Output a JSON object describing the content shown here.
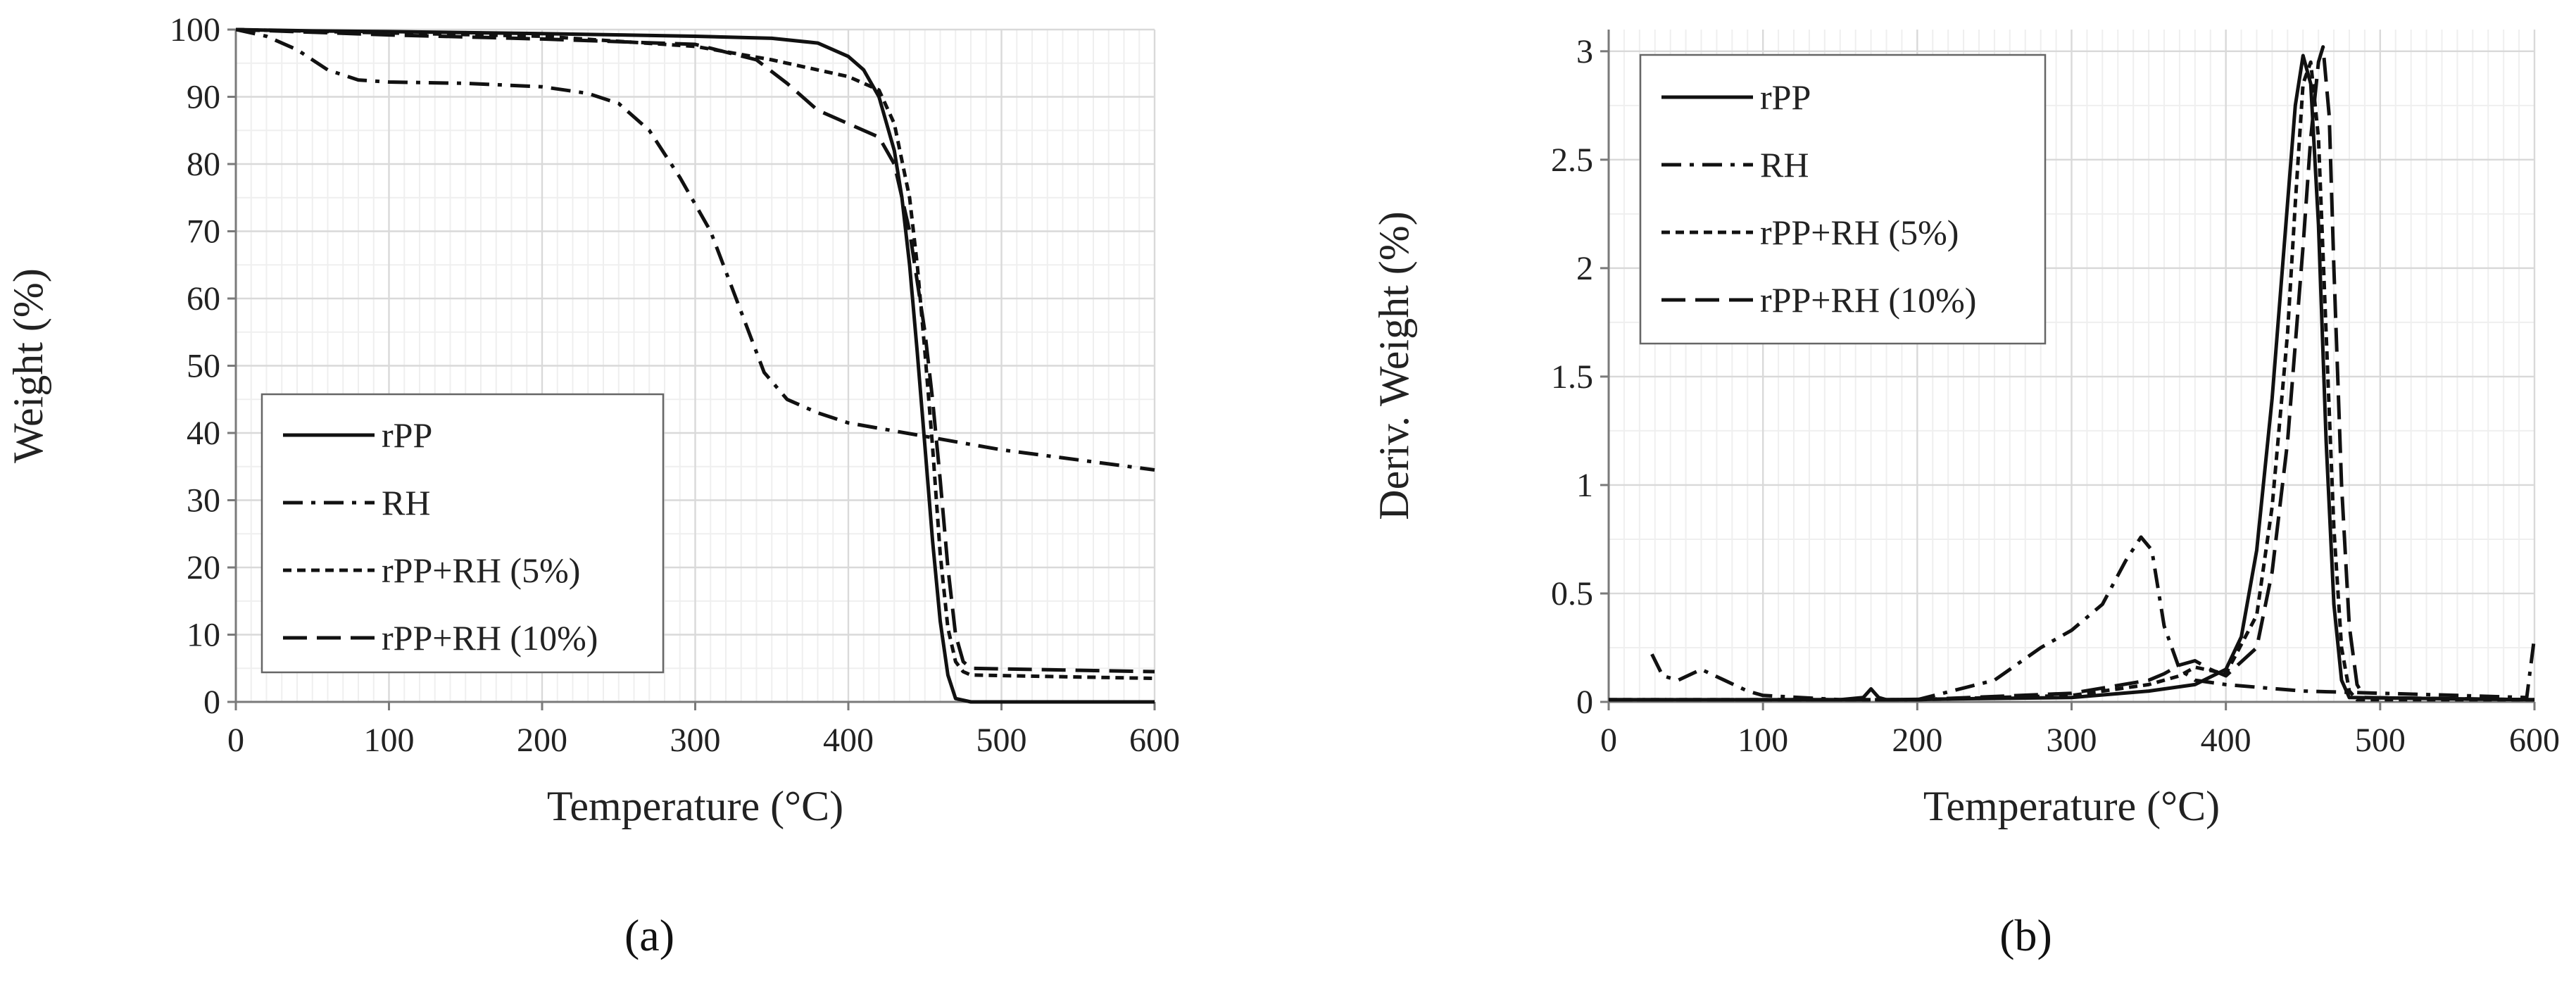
{
  "chart_data": [
    {
      "type": "line",
      "panel_label": "(a)",
      "title": "",
      "xlabel": "Temperature (°C)",
      "ylabel": "Weight (%)",
      "xlim": [
        0,
        600
      ],
      "ylim": [
        0,
        100
      ],
      "xticks": [
        0,
        100,
        200,
        300,
        400,
        500,
        600
      ],
      "xtick_labels": [
        "0",
        "100",
        "200",
        "300",
        "400",
        "500",
        "600"
      ],
      "yticks": [
        0,
        10,
        20,
        30,
        40,
        50,
        60,
        70,
        80,
        90,
        100
      ],
      "ytick_labels": [
        "0",
        "10",
        "20",
        "30",
        "40",
        "50",
        "60",
        "70",
        "80",
        "90",
        "100"
      ],
      "grid": true,
      "legend_position": "bottom-left",
      "series": [
        {
          "name": "rPP",
          "dash": "solid",
          "x": [
            0,
            50,
            100,
            200,
            300,
            350,
            380,
            400,
            410,
            420,
            430,
            435,
            440,
            445,
            450,
            455,
            460,
            465,
            470,
            480,
            600
          ],
          "y": [
            100,
            99.8,
            99.7,
            99.4,
            99,
            98.7,
            98,
            96,
            94,
            90,
            82,
            75,
            65,
            52,
            38,
            24,
            12,
            4,
            0.5,
            0,
            0
          ]
        },
        {
          "name": "RH",
          "dash": "dashdot",
          "x": [
            0,
            20,
            40,
            60,
            80,
            100,
            150,
            200,
            230,
            250,
            270,
            290,
            310,
            330,
            345,
            360,
            380,
            400,
            450,
            500,
            550,
            600
          ],
          "y": [
            100,
            99,
            97,
            94,
            92.5,
            92.2,
            92,
            91.5,
            90.5,
            89,
            85,
            78,
            70,
            58,
            49,
            45,
            43,
            41.5,
            39.5,
            37.5,
            36,
            34.5
          ]
        },
        {
          "name": "rPP+RH (5%)",
          "dash": "shortdash",
          "x": [
            0,
            100,
            200,
            300,
            350,
            380,
            400,
            420,
            430,
            440,
            445,
            450,
            455,
            460,
            465,
            470,
            475,
            480,
            600
          ],
          "y": [
            100,
            99.5,
            99,
            97.5,
            95.5,
            94,
            93,
            91,
            86,
            75,
            65,
            52,
            38,
            22,
            11,
            6,
            4.5,
            4,
            3.5
          ]
        },
        {
          "name": "rPP+RH (10%)",
          "dash": "longdash",
          "x": [
            0,
            100,
            200,
            300,
            340,
            360,
            380,
            400,
            420,
            430,
            440,
            450,
            455,
            460,
            465,
            470,
            475,
            480,
            600
          ],
          "y": [
            100,
            99.2,
            98.6,
            97.8,
            95.5,
            92,
            88,
            86,
            84,
            80,
            70,
            55,
            45,
            33,
            20,
            10,
            6,
            5,
            4.5
          ]
        }
      ]
    },
    {
      "type": "line",
      "panel_label": "(b)",
      "title": "",
      "xlabel": "Temperature (°C)",
      "ylabel": "Deriv. Weight (%)",
      "xlim": [
        0,
        600
      ],
      "ylim": [
        0,
        3.1
      ],
      "xticks": [
        0,
        100,
        200,
        300,
        400,
        500,
        600
      ],
      "xtick_labels": [
        "0",
        "100",
        "200",
        "300",
        "400",
        "500",
        "600"
      ],
      "yticks": [
        0,
        0.5,
        1,
        1.5,
        2,
        2.5,
        3
      ],
      "ytick_labels": [
        "0",
        "0.5",
        "1",
        "1.5",
        "2",
        "2.5",
        "3"
      ],
      "grid": true,
      "legend_position": "top-left",
      "series": [
        {
          "name": "rPP",
          "dash": "solid",
          "x": [
            0,
            150,
            165,
            170,
            175,
            180,
            300,
            350,
            380,
            400,
            410,
            420,
            430,
            440,
            445,
            450,
            455,
            460,
            465,
            470,
            475,
            480,
            600
          ],
          "y": [
            0.01,
            0.01,
            0.02,
            0.06,
            0.02,
            0.01,
            0.02,
            0.05,
            0.08,
            0.15,
            0.3,
            0.7,
            1.4,
            2.3,
            2.75,
            2.98,
            2.85,
            2.2,
            1.2,
            0.45,
            0.1,
            0.02,
            0.01
          ]
        },
        {
          "name": "RH",
          "dash": "dashdot",
          "x": [
            28,
            35,
            45,
            60,
            75,
            90,
            100,
            150,
            200,
            250,
            280,
            300,
            320,
            335,
            345,
            352,
            360,
            370,
            380,
            400,
            450,
            500,
            550,
            595,
            600
          ],
          "y": [
            0.22,
            0.12,
            0.1,
            0.15,
            0.1,
            0.05,
            0.03,
            0.01,
            0.01,
            0.1,
            0.25,
            0.33,
            0.45,
            0.65,
            0.76,
            0.7,
            0.35,
            0.15,
            0.1,
            0.08,
            0.05,
            0.04,
            0.03,
            0.02,
            0.3
          ]
        },
        {
          "name": "rPP+RH (5%)",
          "dash": "shortdash",
          "x": [
            0,
            200,
            300,
            350,
            370,
            380,
            400,
            420,
            430,
            440,
            445,
            450,
            455,
            460,
            465,
            470,
            475,
            480,
            485,
            600
          ],
          "y": [
            0.01,
            0.01,
            0.03,
            0.08,
            0.12,
            0.16,
            0.13,
            0.4,
            0.9,
            1.7,
            2.3,
            2.85,
            2.95,
            2.6,
            1.7,
            0.8,
            0.25,
            0.05,
            0.01,
            0.01
          ]
        },
        {
          "name": "rPP+RH (10%)",
          "dash": "longdash",
          "x": [
            0,
            200,
            300,
            350,
            360,
            370,
            380,
            390,
            400,
            420,
            430,
            440,
            450,
            455,
            460,
            463,
            467,
            470,
            475,
            480,
            485,
            490,
            600
          ],
          "y": [
            0.01,
            0.01,
            0.04,
            0.1,
            0.13,
            0.17,
            0.19,
            0.15,
            0.12,
            0.25,
            0.6,
            1.2,
            2.1,
            2.6,
            2.95,
            3.02,
            2.7,
            2.0,
            1.0,
            0.35,
            0.08,
            0.02,
            0.01
          ]
        }
      ]
    }
  ]
}
